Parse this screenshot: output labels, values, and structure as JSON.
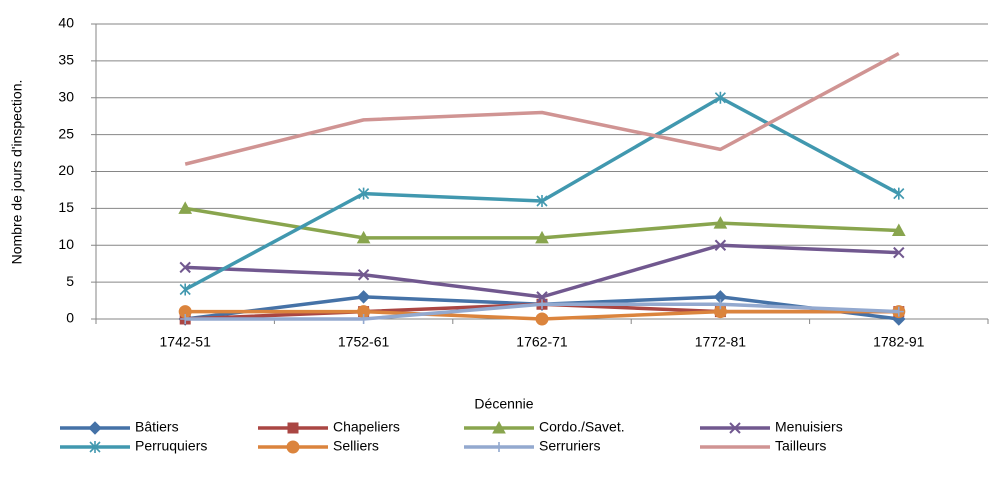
{
  "chart_data": {
    "type": "line",
    "x_label": "Décennie",
    "y_label": "Nombre de jours d'inspection.",
    "categories": [
      "1742-51",
      "1752-61",
      "1762-71",
      "1772-81",
      "1782-91"
    ],
    "series": [
      {
        "name": "Bâtiers",
        "color": "#4572a7",
        "marker": "diamond",
        "values": [
          0,
          3,
          2,
          3,
          0
        ]
      },
      {
        "name": "Chapeliers",
        "color": "#aa4643",
        "marker": "square",
        "values": [
          0,
          1,
          2,
          1,
          1
        ]
      },
      {
        "name": "Cordo./Savet.",
        "color": "#89a54e",
        "marker": "triangle",
        "values": [
          15,
          11,
          11,
          13,
          12
        ]
      },
      {
        "name": "Menuisiers",
        "color": "#71588f",
        "marker": "x",
        "values": [
          7,
          6,
          3,
          10,
          9
        ]
      },
      {
        "name": "Perruquiers",
        "color": "#4198af",
        "marker": "star",
        "values": [
          4,
          17,
          16,
          30,
          17
        ]
      },
      {
        "name": "Selliers",
        "color": "#db843d",
        "marker": "circle",
        "values": [
          1,
          1,
          0,
          1,
          1
        ]
      },
      {
        "name": "Serruriers",
        "color": "#93a9cf",
        "marker": "plus",
        "values": [
          0,
          0,
          2,
          2,
          1
        ]
      },
      {
        "name": "Tailleurs",
        "color": "#d09493",
        "values": [
          21,
          27,
          28,
          23,
          36
        ]
      }
    ],
    "ylim": [
      0,
      40
    ],
    "yticks": [
      0,
      5,
      10,
      15,
      20,
      25,
      30,
      35,
      40
    ],
    "grid": true,
    "legend": "bottom"
  }
}
